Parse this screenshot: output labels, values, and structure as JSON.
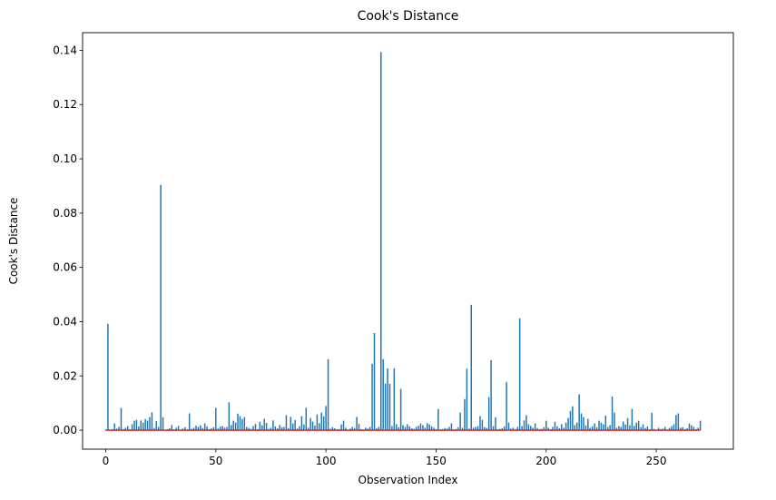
{
  "chart_data": {
    "type": "stem",
    "title": "Cook's Distance",
    "xlabel": "Observation Index",
    "ylabel": "Cook's Distance",
    "xlim": [
      -10.5,
      285
    ],
    "ylim": [
      -0.007,
      0.1465
    ],
    "xticks": [
      0,
      50,
      100,
      150,
      200,
      250
    ],
    "xtick_labels": [
      "0",
      "50",
      "100",
      "150",
      "200",
      "250"
    ],
    "yticks": [
      0.0,
      0.02,
      0.04,
      0.06,
      0.08,
      0.1,
      0.12,
      0.14
    ],
    "ytick_labels": [
      "0.00",
      "0.02",
      "0.04",
      "0.06",
      "0.08",
      "0.10",
      "0.12",
      "0.14"
    ],
    "grid": false,
    "stem_color": "#1f77b4",
    "baseline_color": "#d62728",
    "x_start": 0,
    "values": [
      0.0003,
      0.0392,
      0.0001,
      0.0004,
      0.0025,
      0.0006,
      0.0012,
      0.0082,
      0.0004,
      0.0009,
      0.0015,
      0.0003,
      0.0022,
      0.0035,
      0.0038,
      0.0014,
      0.0036,
      0.0028,
      0.0041,
      0.0035,
      0.0048,
      0.0066,
      0.0008,
      0.0034,
      0.0012,
      0.0904,
      0.0048,
      0.0002,
      0.0004,
      0.0007,
      0.0019,
      0.0003,
      0.0009,
      0.0016,
      0.0002,
      0.0006,
      0.0011,
      0.0003,
      0.0062,
      0.0005,
      0.0009,
      0.0017,
      0.0012,
      0.0018,
      0.0008,
      0.0025,
      0.0014,
      0.0004,
      0.0007,
      0.0011,
      0.0082,
      0.0006,
      0.0013,
      0.0015,
      0.0009,
      0.0012,
      0.0103,
      0.0019,
      0.0035,
      0.0028,
      0.0061,
      0.0052,
      0.0041,
      0.0048,
      0.0012,
      0.0008,
      0.0005,
      0.0015,
      0.0023,
      0.0004,
      0.0031,
      0.0018,
      0.0042,
      0.0027,
      0.0005,
      0.0009,
      0.0036,
      0.0014,
      0.0007,
      0.0019,
      0.0011,
      0.0012,
      0.0055,
      0.0008,
      0.0049,
      0.0025,
      0.0037,
      0.0006,
      0.0015,
      0.0052,
      0.0021,
      0.0083,
      0.0009,
      0.0045,
      0.0032,
      0.0017,
      0.0058,
      0.0026,
      0.0065,
      0.0051,
      0.0089,
      0.0262,
      0.0005,
      0.0011,
      0.0007,
      0.0003,
      0.0004,
      0.0021,
      0.0035,
      0.0009,
      0.0002,
      0.0006,
      0.0012,
      0.0008,
      0.0049,
      0.0023,
      0.0004,
      0.0003,
      0.0009,
      0.0006,
      0.0012,
      0.0245,
      0.0358,
      0.0007,
      0.0012,
      0.1393,
      0.0262,
      0.0172,
      0.0228,
      0.0171,
      0.0015,
      0.0228,
      0.0022,
      0.0011,
      0.0152,
      0.0019,
      0.0012,
      0.0022,
      0.0014,
      0.0007,
      0.0005,
      0.0012,
      0.0016,
      0.0025,
      0.0018,
      0.0009,
      0.0026,
      0.0021,
      0.0014,
      0.0009,
      0.0004,
      0.0078,
      0.0003,
      0.0004,
      0.0008,
      0.0006,
      0.0012,
      0.0025,
      0.0003,
      0.0004,
      0.0011,
      0.0065,
      0.0009,
      0.0115,
      0.0227,
      0.0006,
      0.0462,
      0.0009,
      0.0012,
      0.0015,
      0.0052,
      0.0038,
      0.0011,
      0.0008,
      0.0122,
      0.0258,
      0.0015,
      0.0048,
      0.0004,
      0.0005,
      0.0007,
      0.0014,
      0.0177,
      0.0028,
      0.0006,
      0.0009,
      0.0004,
      0.0012,
      0.0412,
      0.0015,
      0.0036,
      0.0055,
      0.0022,
      0.0016,
      0.0009,
      0.0025,
      0.0008,
      0.0004,
      0.0005,
      0.0011,
      0.0035,
      0.0009,
      0.0004,
      0.0012,
      0.0031,
      0.0014,
      0.0007,
      0.0022,
      0.0009,
      0.0028,
      0.0045,
      0.0071,
      0.0088,
      0.0019,
      0.0028,
      0.0132,
      0.0062,
      0.0048,
      0.0017,
      0.0042,
      0.0009,
      0.0014,
      0.0025,
      0.0011,
      0.0035,
      0.0028,
      0.0022,
      0.0054,
      0.0012,
      0.0019,
      0.0124,
      0.0065,
      0.0009,
      0.0015,
      0.0012,
      0.0032,
      0.0021,
      0.0045,
      0.0018,
      0.0078,
      0.0016,
      0.0028,
      0.0035,
      0.0011,
      0.0022,
      0.0008,
      0.0014,
      0.0003,
      0.0064,
      0.0005,
      0.0002,
      0.0009,
      0.0004,
      0.0006,
      0.0012,
      0.0003,
      0.0008,
      0.0015,
      0.0022,
      0.0056,
      0.0062,
      0.0009,
      0.0011,
      0.0004,
      0.0007,
      0.0025,
      0.0018,
      0.0012,
      0.0004,
      0.0009,
      0.0035
    ]
  }
}
